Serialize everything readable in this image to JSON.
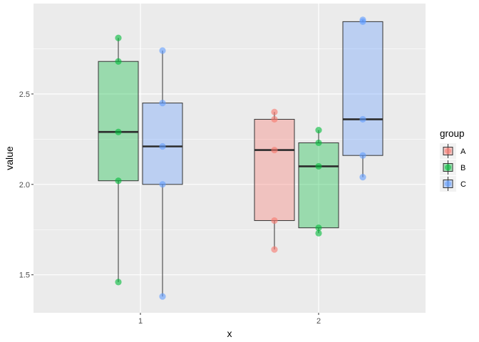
{
  "chart_data": {
    "type": "boxplot",
    "xlabel": "x",
    "ylabel": "value",
    "categories": [
      "1",
      "2"
    ],
    "ylim": [
      1.29,
      3.0
    ],
    "yticks": [
      1.5,
      2.0,
      2.5
    ],
    "ytick_labels": [
      "1.5",
      "2.0",
      "2.5"
    ],
    "grid": true,
    "legend": {
      "title": "group",
      "position": "right",
      "entries": [
        "A",
        "B",
        "C"
      ]
    },
    "colors": {
      "A": "#F8766D",
      "B": "#00BA38",
      "C": "#619CFF",
      "panel": "#EBEBEB",
      "grid": "#FFFFFF"
    },
    "series": [
      {
        "name": "A",
        "boxes": [
          {
            "x": "2",
            "whisker_low": 1.64,
            "q1": 1.8,
            "median": 2.19,
            "q3": 2.36,
            "whisker_high": 2.4
          }
        ],
        "points": [
          {
            "x": "2",
            "y": 2.4
          },
          {
            "x": "2",
            "y": 2.36
          },
          {
            "x": "2",
            "y": 2.19
          },
          {
            "x": "2",
            "y": 1.8
          },
          {
            "x": "2",
            "y": 1.64
          }
        ]
      },
      {
        "name": "B",
        "boxes": [
          {
            "x": "1",
            "whisker_low": 1.46,
            "q1": 2.02,
            "median": 2.29,
            "q3": 2.68,
            "whisker_high": 2.81
          },
          {
            "x": "2",
            "whisker_low": 1.73,
            "q1": 1.76,
            "median": 2.1,
            "q3": 2.23,
            "whisker_high": 2.3
          }
        ],
        "points": [
          {
            "x": "1",
            "y": 2.81
          },
          {
            "x": "1",
            "y": 2.68
          },
          {
            "x": "1",
            "y": 2.29
          },
          {
            "x": "1",
            "y": 2.02
          },
          {
            "x": "1",
            "y": 1.46
          },
          {
            "x": "2",
            "y": 2.3
          },
          {
            "x": "2",
            "y": 2.23
          },
          {
            "x": "2",
            "y": 2.1
          },
          {
            "x": "2",
            "y": 1.76
          },
          {
            "x": "2",
            "y": 1.73
          }
        ]
      },
      {
        "name": "C",
        "boxes": [
          {
            "x": "1",
            "whisker_low": 1.38,
            "q1": 2.0,
            "median": 2.21,
            "q3": 2.45,
            "whisker_high": 2.74
          },
          {
            "x": "2",
            "whisker_low": 2.04,
            "q1": 2.16,
            "median": 2.36,
            "q3": 2.9,
            "whisker_high": 2.91
          }
        ],
        "points": [
          {
            "x": "1",
            "y": 2.74
          },
          {
            "x": "1",
            "y": 2.45
          },
          {
            "x": "1",
            "y": 2.21
          },
          {
            "x": "1",
            "y": 2.0
          },
          {
            "x": "1",
            "y": 1.38
          },
          {
            "x": "2",
            "y": 2.91
          },
          {
            "x": "2",
            "y": 2.9
          },
          {
            "x": "2",
            "y": 2.36
          },
          {
            "x": "2",
            "y": 2.16
          },
          {
            "x": "2",
            "y": 2.04
          }
        ]
      }
    ]
  }
}
